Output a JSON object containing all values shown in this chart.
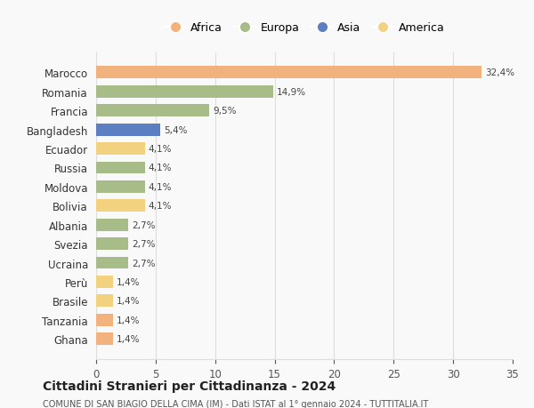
{
  "countries": [
    "Marocco",
    "Romania",
    "Francia",
    "Bangladesh",
    "Ecuador",
    "Russia",
    "Moldova",
    "Bolivia",
    "Albania",
    "Svezia",
    "Ucraina",
    "Perù",
    "Brasile",
    "Tanzania",
    "Ghana"
  ],
  "values": [
    32.4,
    14.9,
    9.5,
    5.4,
    4.1,
    4.1,
    4.1,
    4.1,
    2.7,
    2.7,
    2.7,
    1.4,
    1.4,
    1.4,
    1.4
  ],
  "continents": [
    "Africa",
    "Europa",
    "Europa",
    "Asia",
    "America",
    "Europa",
    "Europa",
    "America",
    "Europa",
    "Europa",
    "Europa",
    "America",
    "America",
    "Africa",
    "Africa"
  ],
  "colors": {
    "Africa": "#F2B27E",
    "Europa": "#A8BC8A",
    "Asia": "#5B7FC0",
    "America": "#F2D27E"
  },
  "legend_order": [
    "Africa",
    "Europa",
    "Asia",
    "America"
  ],
  "xlim": [
    0,
    35
  ],
  "xticks": [
    0,
    5,
    10,
    15,
    20,
    25,
    30,
    35
  ],
  "title": "Cittadini Stranieri per Cittadinanza - 2024",
  "subtitle": "COMUNE DI SAN BIAGIO DELLA CIMA (IM) - Dati ISTAT al 1° gennaio 2024 - TUTTITALIA.IT",
  "bg_color": "#f9f9f9",
  "grid_color": "#dddddd",
  "bar_height": 0.65
}
